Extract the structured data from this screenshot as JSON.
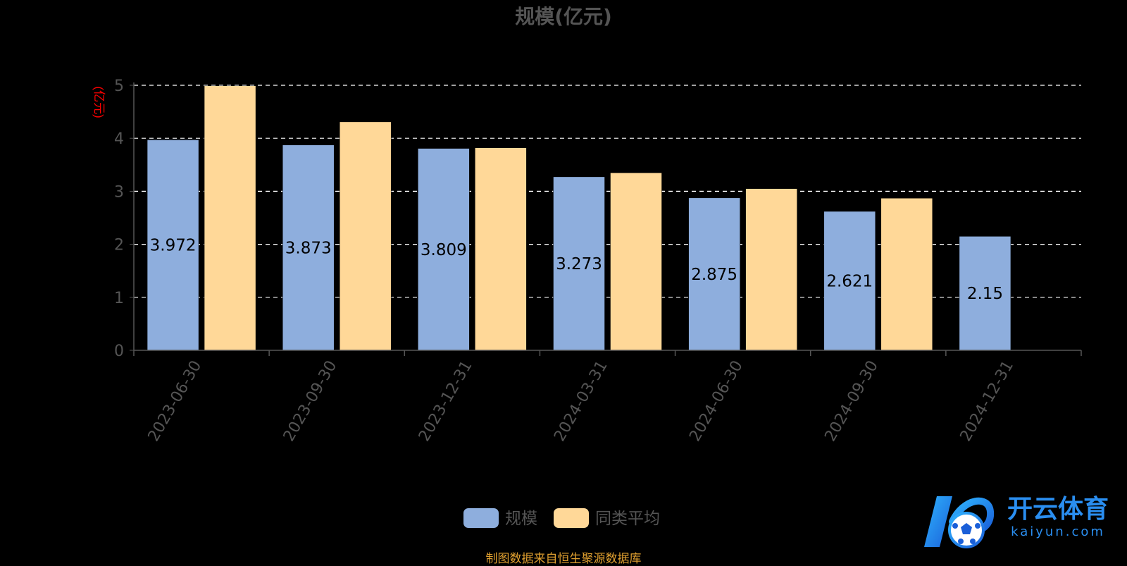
{
  "chart_data": {
    "type": "bar",
    "title": "规模(亿元)",
    "ylabel": "(亿元)",
    "xlabel": "",
    "ylim": [
      0,
      5
    ],
    "yticks": [
      0,
      1,
      2,
      3,
      4,
      5
    ],
    "grid": true,
    "legend_position": "bottom",
    "categories": [
      "2023-06-30",
      "2023-09-30",
      "2023-12-31",
      "2024-03-31",
      "2024-06-30",
      "2024-09-30",
      "2024-12-31"
    ],
    "series": [
      {
        "name": "规模",
        "color": "#8eaedd",
        "values": [
          3.972,
          3.873,
          3.809,
          3.273,
          2.875,
          2.621,
          2.15
        ],
        "labels": [
          "3.972",
          "3.873",
          "3.809",
          "3.273",
          "2.875",
          "2.621",
          "2.15"
        ]
      },
      {
        "name": "同类平均",
        "color": "#ffd898",
        "values": [
          4.99,
          4.31,
          3.82,
          3.35,
          3.05,
          2.87,
          null
        ]
      }
    ]
  },
  "source": "制图数据来自恒生聚源数据库",
  "watermark": {
    "brand": "开云体育",
    "domain": "kaiyun.com"
  },
  "colors": {
    "axis_label_color": "#ff0000",
    "tick_color": "#555555",
    "grid_color": "#ffffff",
    "source_color": "#e0a030"
  }
}
